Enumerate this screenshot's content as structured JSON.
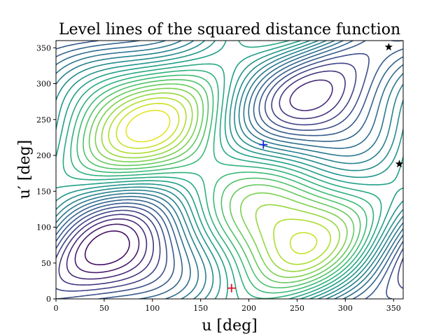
{
  "chart_data": {
    "type": "contour",
    "title": "Level lines of the squared distance function",
    "xlabel": "u [deg]",
    "ylabel": "u′ [deg]",
    "xlim": [
      0,
      360
    ],
    "ylim": [
      0,
      360
    ],
    "x_ticks": [
      0,
      50,
      100,
      150,
      200,
      250,
      300,
      350
    ],
    "y_ticks": [
      0,
      50,
      100,
      150,
      200,
      250,
      300,
      350
    ],
    "colormap": "viridis",
    "minimum_points": [
      {
        "u": 182,
        "v": 15,
        "marker": "red-plus",
        "color": "#e3122c"
      },
      {
        "u": 215,
        "v": 215,
        "marker": "blue-plus",
        "color": "#1f2bd6"
      }
    ],
    "star_points": [
      {
        "u": 345,
        "v": 351,
        "marker": "black-star",
        "color": "#000000"
      },
      {
        "u": 356,
        "v": 188,
        "marker": "black-star",
        "color": "#000000"
      }
    ]
  }
}
